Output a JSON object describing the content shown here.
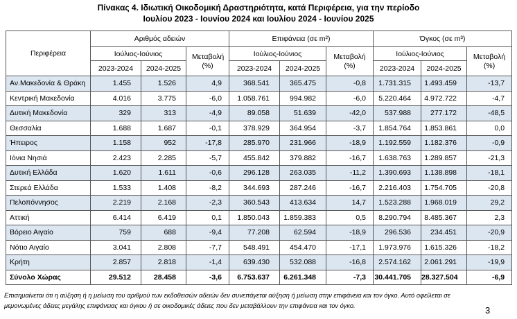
{
  "title": [
    "Πίνακας 4.  Ιδιωτική Οικοδομική Δραστηριότητα, κατά  Περιφέρεια, για την περίοδο",
    "Ιουλίου 2023 - Ιουνίου 2024 και Ιουλίου 2024 - Ιουνίου 2025"
  ],
  "table": {
    "region_header": "Περιφέρεια",
    "groups": [
      {
        "title": "Αριθμός αδειών",
        "period": "Ιούλιος-Ιούνιος",
        "years": [
          "2023-2024",
          "2024-2025"
        ],
        "change": "Μεταβολή (%)"
      },
      {
        "title": "Επιφάνεια (σε m²)",
        "period": "Ιούλιος-Ιούνιος",
        "years": [
          "2023-2024",
          "2024-2025"
        ],
        "change": "Μεταβολή (%)"
      },
      {
        "title": "Όγκος (σε m³)",
        "period": "Ιούλιος-Ιούνιος",
        "years": [
          "2023-2024",
          "2024-2025"
        ],
        "change": "Μεταβολή (%)"
      }
    ],
    "rows": [
      [
        "Αν.Μακεδονία & Θράκη",
        "1.455",
        "1.526",
        "4,9",
        "368.541",
        "365.475",
        "-0,8",
        "1.731.315",
        "1.493.459",
        "-13,7"
      ],
      [
        "Κεντρική Μακεδονία",
        "4.016",
        "3.775",
        "-6,0",
        "1.058.761",
        "994.982",
        "-6,0",
        "5.220.464",
        "4.972.722",
        "-4,7"
      ],
      [
        "Δυτική Μακεδονία",
        "329",
        "313",
        "-4,9",
        "89.058",
        "51.639",
        "-42,0",
        "537.988",
        "277.172",
        "-48,5"
      ],
      [
        "Θεσσαλία",
        "1.688",
        "1.687",
        "-0,1",
        "378.929",
        "364.954",
        "-3,7",
        "1.854.764",
        "1.853.861",
        "0,0"
      ],
      [
        "Ήπειρος",
        "1.158",
        "952",
        "-17,8",
        "285.970",
        "231.966",
        "-18,9",
        "1.192.559",
        "1.182.376",
        "-0,9"
      ],
      [
        "Ιόνια Νησιά",
        "2.423",
        "2.285",
        "-5,7",
        "455.842",
        "379.882",
        "-16,7",
        "1.638.763",
        "1.289.857",
        "-21,3"
      ],
      [
        "Δυτική Ελλάδα",
        "1.620",
        "1.611",
        "-0,6",
        "296.128",
        "263.035",
        "-11,2",
        "1.390.693",
        "1.138.898",
        "-18,1"
      ],
      [
        "Στερεά Ελλάδα",
        "1.533",
        "1.408",
        "-8,2",
        "344.693",
        "287.246",
        "-16,7",
        "2.216.403",
        "1.754.705",
        "-20,8"
      ],
      [
        "Πελοπόννησος",
        "2.219",
        "2.168",
        "-2,3",
        "360.543",
        "413.634",
        "14,7",
        "1.523.288",
        "1.968.019",
        "29,2"
      ],
      [
        "Αττική",
        "6.414",
        "6.419",
        "0,1",
        "1.850.043",
        "1.859.383",
        "0,5",
        "8.290.794",
        "8.485.367",
        "2,3"
      ],
      [
        "Βόρειο Αιγαίο",
        "759",
        "688",
        "-9,4",
        "77.208",
        "62.594",
        "-18,9",
        "296.536",
        "234.451",
        "-20,9"
      ],
      [
        "Νότιο Αιγαίο",
        "3.041",
        "2.808",
        "-7,7",
        "548.491",
        "454.470",
        "-17,1",
        "1.973.976",
        "1.615.326",
        "-18,2"
      ],
      [
        "Κρήτη",
        "2.857",
        "2.818",
        "-1,4",
        "639.430",
        "532.088",
        "-16,8",
        "2.574.162",
        "2.061.291",
        "-19,9"
      ]
    ],
    "total": [
      "Σύνολο Χώρας",
      "29.512",
      "28.458",
      "-3,6",
      "6.753.637",
      "6.261.348",
      "-7,3",
      "30.441.705",
      "28.327.504",
      "-6,9"
    ]
  },
  "footnote": [
    "Επισημαίνεται ότι η αύξηση ή η μείωση του αριθμού των εκδοθεισών αδειών δεν συνεπάγεται αύξηση ή μείωση στην επιφάνεια και τον όγκο. Αυτό οφείλεται σε",
    "μεμονωμένες άδειες μεγάλης επιφάνειας και όγκου ή σε οικοδομικές άδειες που δεν μεταβάλλουν την επιφάνεια και τον όγκο."
  ],
  "page_number": "3"
}
